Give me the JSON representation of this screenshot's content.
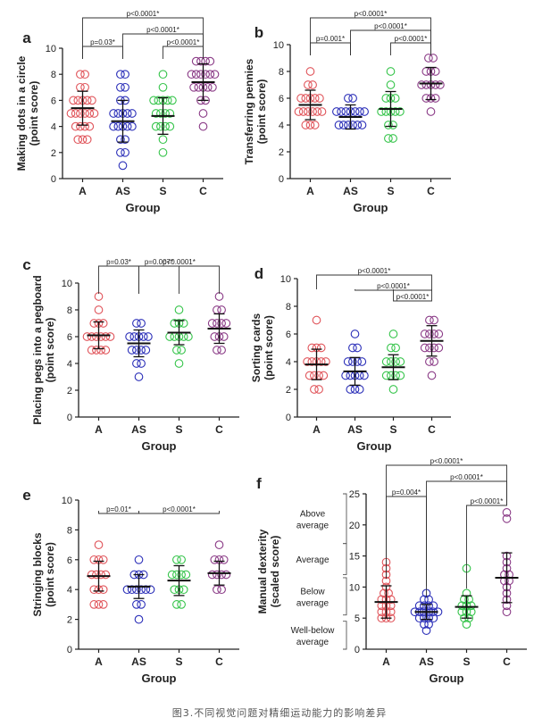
{
  "caption": "图3.不同视觉问题对精细运动能力的影响差异",
  "chart_data": [
    {
      "panel": "a",
      "type": "scatter",
      "ylabel": [
        "Making dots in a circle",
        "(point score)"
      ],
      "xlabel": "Group",
      "categories": [
        "A",
        "AS",
        "S",
        "C"
      ],
      "ylim": [
        0,
        10
      ],
      "yticks": [
        0,
        2,
        4,
        6,
        8,
        10
      ],
      "colors": [
        "#e0545a",
        "#2a2eb8",
        "#35c44a",
        "#8a3a86"
      ],
      "points": [
        [
          3,
          3,
          3,
          4,
          4,
          4,
          4,
          5,
          5,
          5,
          5,
          5,
          5,
          6,
          6,
          6,
          6,
          6,
          7,
          7,
          8,
          8
        ],
        [
          1,
          2,
          2,
          3,
          3,
          4,
          4,
          4,
          4,
          4,
          5,
          5,
          5,
          5,
          5,
          6,
          6,
          7,
          7,
          8,
          8
        ],
        [
          2,
          3,
          4,
          4,
          4,
          4,
          5,
          5,
          5,
          5,
          6,
          6,
          6,
          6,
          6,
          7,
          8
        ],
        [
          4,
          5,
          6,
          6,
          7,
          7,
          7,
          7,
          7,
          8,
          8,
          8,
          8,
          8,
          8,
          9,
          9,
          9,
          9
        ]
      ],
      "mean": [
        5.4,
        4.4,
        4.8,
        7.4
      ],
      "sd": [
        1.3,
        1.6,
        1.4,
        1.4
      ],
      "comparisons": [
        {
          "label": "p<0.0001*",
          "from": 0,
          "to": 3
        },
        {
          "label": "p<0.0001*",
          "from": 1,
          "to": 3
        },
        {
          "label": "p=0.03*",
          "from": 0,
          "to": 1
        },
        {
          "label": "p<0.0001*",
          "from": 2,
          "to": 3
        }
      ]
    },
    {
      "panel": "b",
      "type": "scatter",
      "ylabel": [
        "Transferring pennies",
        "(point score)"
      ],
      "xlabel": "Group",
      "categories": [
        "A",
        "AS",
        "S",
        "C"
      ],
      "ylim": [
        0,
        10
      ],
      "yticks": [
        0,
        2,
        4,
        6,
        8,
        10
      ],
      "colors": [
        "#e0545a",
        "#2a2eb8",
        "#35c44a",
        "#8a3a86"
      ],
      "points": [
        [
          4,
          4,
          4,
          5,
          5,
          5,
          5,
          5,
          5,
          6,
          6,
          6,
          6,
          6,
          7,
          7,
          8
        ],
        [
          4,
          4,
          4,
          4,
          4,
          4,
          5,
          5,
          5,
          5,
          5,
          5,
          5,
          6,
          6
        ],
        [
          3,
          3,
          4,
          4,
          5,
          5,
          5,
          5,
          5,
          6,
          6,
          6,
          7,
          8
        ],
        [
          5,
          6,
          6,
          6,
          7,
          7,
          7,
          7,
          7,
          8,
          8,
          8,
          9,
          9
        ]
      ],
      "mean": [
        5.5,
        4.6,
        5.2,
        7.1
      ],
      "sd": [
        1.1,
        0.9,
        1.3,
        1.2
      ],
      "comparisons": [
        {
          "label": "p<0.0001*",
          "from": 0,
          "to": 3
        },
        {
          "label": "p<0.0001*",
          "from": 1,
          "to": 3
        },
        {
          "label": "p=0.001*",
          "from": 0,
          "to": 1
        },
        {
          "label": "p<0.0001*",
          "from": 2,
          "to": 3
        }
      ]
    },
    {
      "panel": "c",
      "type": "scatter",
      "ylabel": [
        "Placing pegs into a pegboard",
        "(point score)"
      ],
      "xlabel": "Group",
      "categories": [
        "A",
        "AS",
        "S",
        "C"
      ],
      "ylim": [
        0,
        10
      ],
      "yticks": [
        0,
        2,
        4,
        6,
        8,
        10
      ],
      "colors": [
        "#e0545a",
        "#2a2eb8",
        "#35c44a",
        "#8a3a86"
      ],
      "points": [
        [
          5,
          5,
          5,
          5,
          6,
          6,
          6,
          6,
          6,
          6,
          7,
          7,
          7,
          8,
          9
        ],
        [
          3,
          4,
          4,
          5,
          5,
          5,
          5,
          6,
          6,
          6,
          6,
          6,
          7,
          7
        ],
        [
          4,
          5,
          5,
          6,
          6,
          6,
          6,
          6,
          7,
          7,
          7,
          8
        ],
        [
          5,
          5,
          6,
          6,
          6,
          7,
          7,
          7,
          7,
          8,
          8,
          9
        ]
      ],
      "mean": [
        6.1,
        5.5,
        6.3,
        6.6
      ],
      "sd": [
        1.0,
        1.0,
        0.9,
        1.1
      ],
      "comparisons": [
        {
          "label": "p=0.03*",
          "from": 0,
          "to": 1
        },
        {
          "label": "p=0.007*",
          "from": 1,
          "to": 2
        },
        {
          "label": "p<0.0001*",
          "from": 1,
          "to": 3
        }
      ]
    },
    {
      "panel": "d",
      "type": "scatter",
      "ylabel": [
        "Sorting cards",
        "(point score)"
      ],
      "xlabel": "Group",
      "categories": [
        "A",
        "AS",
        "S",
        "C"
      ],
      "ylim": [
        0,
        10
      ],
      "yticks": [
        0,
        2,
        4,
        6,
        8,
        10
      ],
      "colors": [
        "#e0545a",
        "#2a2eb8",
        "#35c44a",
        "#8a3a86"
      ],
      "points": [
        [
          2,
          2,
          3,
          3,
          3,
          3,
          4,
          4,
          4,
          4,
          4,
          5,
          5,
          5,
          7
        ],
        [
          2,
          2,
          2,
          3,
          3,
          3,
          3,
          3,
          4,
          4,
          4,
          4,
          5,
          5,
          6
        ],
        [
          2,
          3,
          3,
          3,
          3,
          4,
          4,
          4,
          4,
          5,
          5,
          6
        ],
        [
          3,
          4,
          4,
          5,
          5,
          5,
          5,
          6,
          6,
          6,
          6,
          7,
          7
        ]
      ],
      "mean": [
        3.8,
        3.3,
        3.6,
        5.5
      ],
      "sd": [
        1.1,
        1.0,
        0.9,
        1.1
      ],
      "comparisons": [
        {
          "label": "p<0.0001*",
          "from": 0,
          "to": 3
        },
        {
          "label": "p<0.0001*",
          "from": 1,
          "to": 3
        },
        {
          "label": "p<0.0001*",
          "from": 2,
          "to": 3
        }
      ]
    },
    {
      "panel": "e",
      "type": "scatter",
      "ylabel": [
        "Stringing blocks",
        "(point score)"
      ],
      "xlabel": "Group",
      "categories": [
        "A",
        "AS",
        "S",
        "C"
      ],
      "ylim": [
        0,
        10
      ],
      "yticks": [
        0,
        2,
        4,
        6,
        8,
        10
      ],
      "colors": [
        "#e0545a",
        "#2a2eb8",
        "#35c44a",
        "#8a3a86"
      ],
      "points": [
        [
          3,
          3,
          3,
          4,
          4,
          4,
          5,
          5,
          5,
          5,
          6,
          6,
          6,
          7
        ],
        [
          2,
          3,
          3,
          4,
          4,
          4,
          4,
          4,
          4,
          5,
          5,
          5,
          6
        ],
        [
          3,
          3,
          4,
          4,
          4,
          5,
          5,
          5,
          5,
          6,
          6
        ],
        [
          4,
          4,
          5,
          5,
          5,
          5,
          6,
          6,
          6,
          7
        ]
      ],
      "mean": [
        4.9,
        4.2,
        4.6,
        5.1
      ],
      "sd": [
        1.0,
        0.8,
        1.0,
        0.8
      ],
      "comparisons": [
        {
          "label": "p=0.01*",
          "from": 0,
          "to": 1
        },
        {
          "label": "p<0.0001*",
          "from": 1,
          "to": 3
        }
      ]
    },
    {
      "panel": "f",
      "type": "scatter",
      "ylabel": [
        "Manual dexterity",
        "(scaled score)"
      ],
      "xlabel": "Group",
      "categories": [
        "A",
        "AS",
        "S",
        "C"
      ],
      "ylim": [
        0,
        25
      ],
      "yticks": [
        0,
        5,
        10,
        15,
        20,
        25
      ],
      "colors": [
        "#e0545a",
        "#2a2eb8",
        "#35c44a",
        "#8a3a86"
      ],
      "points": [
        [
          5,
          5,
          5,
          6,
          6,
          6,
          7,
          7,
          7,
          8,
          8,
          8,
          9,
          9,
          10,
          11,
          12,
          13,
          14
        ],
        [
          3,
          4,
          4,
          5,
          5,
          5,
          5,
          6,
          6,
          6,
          6,
          6,
          6,
          7,
          7,
          7,
          7,
          8,
          8,
          9
        ],
        [
          4,
          5,
          5,
          6,
          6,
          6,
          7,
          7,
          7,
          8,
          8,
          9,
          13
        ],
        [
          6,
          7,
          8,
          9,
          10,
          11,
          11,
          12,
          12,
          13,
          14,
          15,
          21,
          22
        ]
      ],
      "mean": [
        7.6,
        6.0,
        6.8,
        11.5
      ],
      "sd": [
        2.6,
        1.2,
        1.8,
        4.0
      ],
      "comparisons": [
        {
          "label": "p<0.0001*",
          "from": 0,
          "to": 3
        },
        {
          "label": "p<0.0001*",
          "from": 1,
          "to": 3
        },
        {
          "label": "p=0.004*",
          "from": 0,
          "to": 1
        },
        {
          "label": "p<0.0001*",
          "from": 2,
          "to": 3
        }
      ],
      "bands": [
        {
          "label": [
            "Above",
            "average"
          ],
          "range": [
            17,
            25
          ]
        },
        {
          "label": [
            "Average"
          ],
          "range": [
            12,
            17
          ]
        },
        {
          "label": [
            "Below",
            "average"
          ],
          "range": [
            5.5,
            11.5
          ]
        },
        {
          "label": [
            "Well-below",
            "average"
          ],
          "range": [
            0,
            4.5
          ]
        }
      ]
    }
  ]
}
